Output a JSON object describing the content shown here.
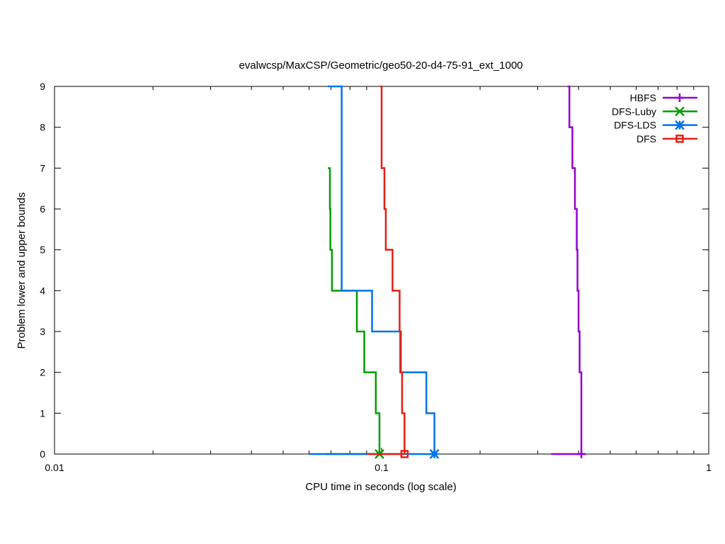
{
  "chart_data": {
    "type": "line",
    "title": "evalwcsp/MaxCSP/Geometric/geo50-20-d4-75-91_ext_1000",
    "xlabel": "CPU time in seconds (log scale)",
    "ylabel": "Problem lower and upper bounds",
    "xscale": "log",
    "xlim": [
      0.01,
      1
    ],
    "ylim": [
      0,
      9
    ],
    "x_ticks": [
      {
        "value": 0.01,
        "label": "0.01"
      },
      {
        "value": 0.1,
        "label": "0.1"
      },
      {
        "value": 1,
        "label": "1"
      }
    ],
    "y_ticks": [
      0,
      1,
      2,
      3,
      4,
      5,
      6,
      7,
      8,
      9
    ],
    "grid": false,
    "legend_position": "top-right",
    "series": [
      {
        "name": "HBFS",
        "color": "#9400d3",
        "marker": "plus",
        "upper": [
          [
            0.37,
            9
          ],
          [
            0.375,
            9
          ],
          [
            0.375,
            8
          ],
          [
            0.383,
            8
          ],
          [
            0.383,
            7
          ],
          [
            0.39,
            7
          ],
          [
            0.39,
            6
          ],
          [
            0.395,
            6
          ],
          [
            0.395,
            5
          ],
          [
            0.397,
            5
          ],
          [
            0.397,
            4
          ],
          [
            0.4,
            4
          ],
          [
            0.4,
            3
          ],
          [
            0.403,
            3
          ],
          [
            0.403,
            2
          ],
          [
            0.408,
            2
          ],
          [
            0.408,
            0
          ]
        ],
        "lower": [
          [
            0.33,
            0
          ],
          [
            0.42,
            0
          ]
        ],
        "final": [
          0.408,
          0
        ]
      },
      {
        "name": "DFS-Luby",
        "color": "#009e00",
        "marker": "x",
        "upper": [
          [
            0.0685,
            7
          ],
          [
            0.0695,
            7
          ],
          [
            0.0695,
            6
          ],
          [
            0.0697,
            6
          ],
          [
            0.0697,
            5
          ],
          [
            0.0705,
            5
          ],
          [
            0.0705,
            4
          ],
          [
            0.084,
            4
          ],
          [
            0.084,
            3
          ],
          [
            0.0885,
            3
          ],
          [
            0.0885,
            2
          ],
          [
            0.096,
            2
          ],
          [
            0.096,
            1
          ],
          [
            0.0985,
            1
          ],
          [
            0.0985,
            0
          ]
        ],
        "lower": [
          [
            0.0675,
            0
          ],
          [
            0.0985,
            0
          ]
        ],
        "final": [
          0.0985,
          0
        ]
      },
      {
        "name": "DFS-LDS",
        "color": "#0072ed",
        "marker": "star",
        "upper": [
          [
            0.0685,
            9
          ],
          [
            0.0755,
            9
          ],
          [
            0.0755,
            4
          ],
          [
            0.0935,
            4
          ],
          [
            0.0935,
            3
          ],
          [
            0.114,
            3
          ],
          [
            0.114,
            2
          ],
          [
            0.137,
            2
          ],
          [
            0.137,
            1
          ],
          [
            0.145,
            1
          ],
          [
            0.145,
            0
          ]
        ],
        "lower": [
          [
            0.06,
            0
          ],
          [
            0.145,
            0
          ]
        ],
        "final": [
          0.145,
          0
        ]
      },
      {
        "name": "DFS",
        "color": "#e51e10",
        "marker": "square",
        "upper": [
          [
            0.099,
            9
          ],
          [
            0.1,
            9
          ],
          [
            0.1,
            8
          ],
          [
            0.1,
            8
          ],
          [
            0.1,
            7
          ],
          [
            0.102,
            7
          ],
          [
            0.102,
            6
          ],
          [
            0.103,
            6
          ],
          [
            0.103,
            5
          ],
          [
            0.108,
            5
          ],
          [
            0.108,
            4
          ],
          [
            0.1135,
            4
          ],
          [
            0.1135,
            3
          ],
          [
            0.1145,
            3
          ],
          [
            0.1145,
            2
          ],
          [
            0.1155,
            2
          ],
          [
            0.1155,
            1
          ],
          [
            0.1175,
            1
          ],
          [
            0.1175,
            0
          ]
        ],
        "lower": [
          [
            0.09,
            0
          ],
          [
            0.1175,
            0
          ]
        ],
        "final": [
          0.1175,
          0
        ]
      }
    ]
  }
}
